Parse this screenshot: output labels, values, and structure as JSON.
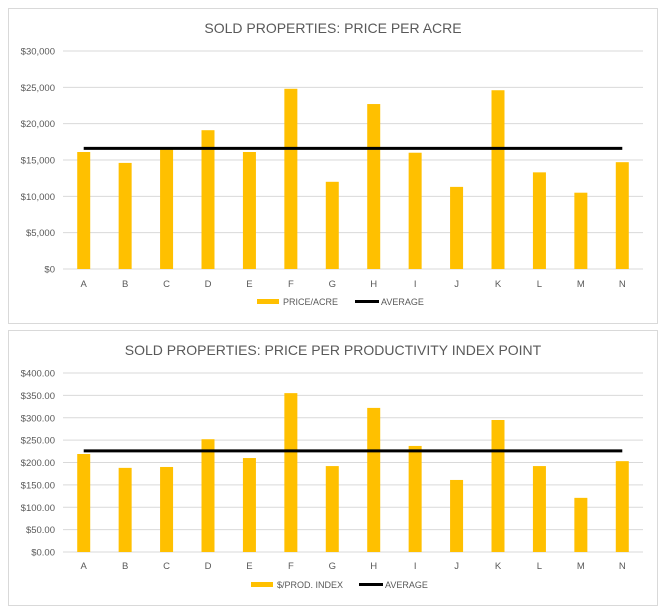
{
  "chart_data": [
    {
      "type": "bar",
      "title": "SOLD PROPERTIES: PRICE PER ACRE",
      "categories": [
        "A",
        "B",
        "C",
        "D",
        "E",
        "F",
        "G",
        "H",
        "I",
        "J",
        "K",
        "L",
        "M",
        "N"
      ],
      "series": [
        {
          "name": "PRICE/ACRE",
          "type": "bar",
          "color": "#FFC000",
          "values": [
            16100,
            14600,
            16500,
            19100,
            16100,
            24800,
            12000,
            22700,
            16000,
            11300,
            24600,
            13300,
            10500,
            14700
          ]
        },
        {
          "name": "AVERAGE",
          "type": "line",
          "color": "#000000",
          "values": [
            16600,
            16600,
            16600,
            16600,
            16600,
            16600,
            16600,
            16600,
            16600,
            16600,
            16600,
            16600,
            16600,
            16600
          ]
        }
      ],
      "ylim": [
        0,
        30000
      ],
      "yticks": [
        "$0",
        "$5,000",
        "$10,000",
        "$15,000",
        "$20,000",
        "$25,000",
        "$30,000"
      ],
      "grid": true,
      "legend": "bottom"
    },
    {
      "type": "bar",
      "title": "SOLD PROPERTIES: PRICE PER PRODUCTIVITY INDEX  POINT",
      "categories": [
        "A",
        "B",
        "C",
        "D",
        "E",
        "F",
        "G",
        "H",
        "I",
        "J",
        "K",
        "L",
        "M",
        "N"
      ],
      "series": [
        {
          "name": "$/PROD. INDEX",
          "type": "bar",
          "color": "#FFC000",
          "values": [
            219,
            188,
            190,
            252,
            210,
            355,
            192,
            322,
            237,
            161,
            295,
            192,
            121,
            203
          ]
        },
        {
          "name": "AVERAGE",
          "type": "line",
          "color": "#000000",
          "values": [
            226,
            226,
            226,
            226,
            226,
            226,
            226,
            226,
            226,
            226,
            226,
            226,
            226,
            226
          ]
        }
      ],
      "ylim": [
        0,
        400
      ],
      "yticks": [
        "$0.00",
        "$50.00",
        "$100.00",
        "$150.00",
        "$200.00",
        "$250.00",
        "$300.00",
        "$350.00",
        "$400.00"
      ],
      "grid": true,
      "legend": "bottom"
    }
  ]
}
